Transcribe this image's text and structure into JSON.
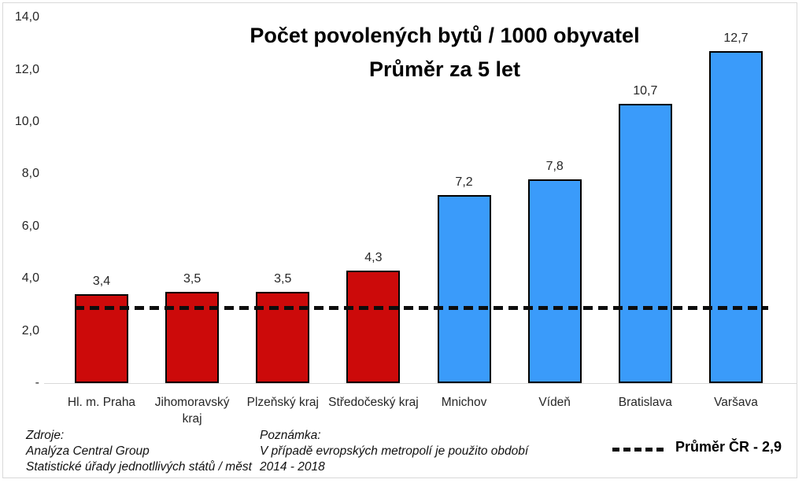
{
  "chart_data": {
    "type": "bar",
    "title": "Počet povolených bytů / 1000 obyvatel",
    "subtitle": "Průměr za 5 let",
    "categories": [
      "Hl. m. Praha",
      "Jihomoravský\nkraj",
      "Plzeňský kraj",
      "Středočeský kraj",
      "Mnichov",
      "Vídeň",
      "Bratislava",
      "Varšava"
    ],
    "values": [
      3.4,
      3.5,
      3.5,
      4.3,
      7.2,
      7.8,
      10.7,
      12.7
    ],
    "value_labels": [
      "3,4",
      "3,5",
      "3,5",
      "4,3",
      "7,2",
      "7,8",
      "10,7",
      "12,7"
    ],
    "bar_groups": [
      "czech",
      "czech",
      "czech",
      "czech",
      "european",
      "european",
      "european",
      "european"
    ],
    "colors": {
      "czech": "#cc0a0a",
      "european": "#3a9bfa",
      "bar_border": "#000000"
    },
    "y_ticks": [
      {
        "value": 14,
        "label": "14,0"
      },
      {
        "value": 12,
        "label": "12,0"
      },
      {
        "value": 10,
        "label": "10,0"
      },
      {
        "value": 8,
        "label": "8,0"
      },
      {
        "value": 6,
        "label": "6,0"
      },
      {
        "value": 4,
        "label": "4,0"
      },
      {
        "value": 2,
        "label": "2,0"
      },
      {
        "value": 0,
        "label": "-"
      }
    ],
    "ylim": [
      0,
      14
    ],
    "grid": false,
    "legend_position": "bottom-right",
    "reference_line": {
      "value": 2.9,
      "label": "Průměr ČR - 2,9"
    }
  },
  "footnotes": {
    "sources_title": "Zdroje:",
    "sources_line1": "Analýza Central Group",
    "sources_line2": "Statistické úřady jednotllivých států / měst",
    "note_title": "Poznámka:",
    "note_line1": "V případě evropských metropolí je použito období",
    "note_line2": "2014 - 2018"
  }
}
